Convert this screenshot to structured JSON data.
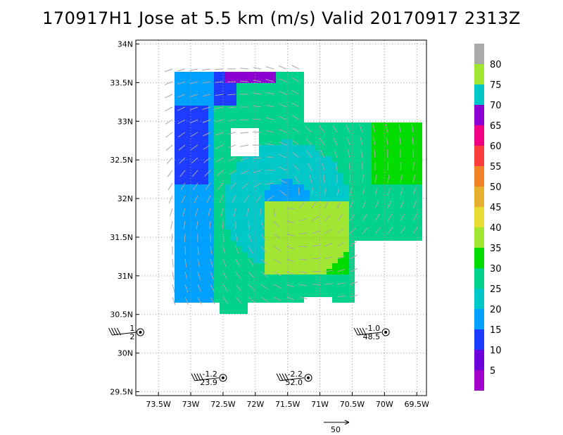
{
  "title": "170917H1 Jose at 5.5 km (m/s) Valid 20170917 2313Z",
  "chart_data": {
    "type": "heatmap",
    "x_tick_labels": [
      "73.5W",
      "73W",
      "72.5W",
      "72W",
      "71.5W",
      "71W",
      "70.5W",
      "70W",
      "69.5W"
    ],
    "x_tick_values": [
      -73.5,
      -73,
      -72.5,
      -72,
      -71.5,
      -71,
      -70.5,
      -70,
      -69.5
    ],
    "y_tick_labels": [
      "29.5N",
      "30N",
      "30.5N",
      "31N",
      "31.5N",
      "32N",
      "32.5N",
      "33N",
      "33.5N",
      "34N"
    ],
    "y_tick_values": [
      29.5,
      30,
      30.5,
      31,
      31.5,
      32,
      32.5,
      33,
      33.5,
      34
    ],
    "xlim": [
      -73.85,
      -69.35
    ],
    "ylim": [
      29.45,
      34.05
    ],
    "grid": true,
    "storm_center": {
      "lon": -71.55,
      "lat": 31.95
    },
    "colorbar": {
      "levels": [
        "5",
        "10",
        "15",
        "20",
        "25",
        "30",
        "35",
        "40",
        "45",
        "50",
        "55",
        "60",
        "65",
        "70",
        "75",
        "80"
      ],
      "colors": [
        "#a000c8",
        "#6e00dc",
        "#1e3cff",
        "#00a0ff",
        "#00c8c8",
        "#00d28c",
        "#00dc00",
        "#a0e632",
        "#e6dc32",
        "#e6af2d",
        "#f08228",
        "#fa3c3c",
        "#f00082",
        "#8c00d2",
        "#00c8c8",
        "#a0e632",
        "#aaaaaa"
      ]
    },
    "reference_vector": {
      "label": "50"
    },
    "observations": [
      {
        "lon": -73.78,
        "lat": 30.27,
        "labels": [
          "1",
          "2"
        ]
      },
      {
        "lon": -72.5,
        "lat": 29.68,
        "labels": [
          "-1.2",
          "23.9"
        ]
      },
      {
        "lon": -71.18,
        "lat": 29.68,
        "labels": [
          "-2.2",
          "52.0"
        ]
      },
      {
        "lon": -69.98,
        "lat": 30.27,
        "labels": [
          "-1.0",
          "48.5"
        ]
      }
    ]
  }
}
